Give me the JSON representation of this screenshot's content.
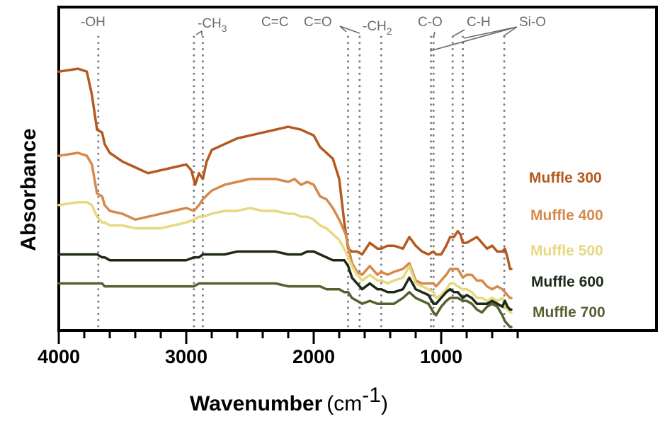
{
  "chart_data": {
    "type": "line",
    "title": "",
    "xlabel": "Wavenumber",
    "xlabel_unit": "(cm",
    "xlabel_unit_sup": "-1",
    "xlabel_unit_close": ")",
    "ylabel": "Absorbance",
    "xlim": [
      4000,
      450
    ],
    "x_reversed": true,
    "ylim": [
      0,
      100
    ],
    "y_units": "arbitrary (offset)",
    "grid": false,
    "legend_placement": "right, inline",
    "x_ticks": [
      {
        "value": 4000,
        "label": "4000"
      },
      {
        "value": 3000,
        "label": "3000"
      },
      {
        "value": 2000,
        "label": "2000"
      },
      {
        "value": 1000,
        "label": "1000"
      }
    ],
    "x_minor_tick_step": 200,
    "annotations": [
      {
        "label": "-OH",
        "positions": [
          3690
        ]
      },
      {
        "label": "-CH",
        "sub": "3",
        "positions": [
          2940,
          2870
        ]
      },
      {
        "label": "C=C",
        "positions": [
          1730
        ]
      },
      {
        "label": "C=O",
        "positions": [
          1640
        ]
      },
      {
        "label": "-CH",
        "sub": "2",
        "positions": [
          1470
        ]
      },
      {
        "label": "C-O",
        "positions": [
          1080,
          1060
        ]
      },
      {
        "label": "C-H",
        "positions": [
          910,
          830
        ]
      },
      {
        "label": "Si-O",
        "positions": [
          1060,
          910,
          830,
          505
        ]
      }
    ],
    "series": [
      {
        "name": "Muffle 300",
        "color": "#b4591f",
        "x": [
          4000,
          3850,
          3780,
          3740,
          3700,
          3660,
          3640,
          3600,
          3500,
          3400,
          3300,
          3200,
          3100,
          3000,
          2960,
          2930,
          2900,
          2870,
          2840,
          2800,
          2700,
          2600,
          2500,
          2400,
          2300,
          2200,
          2100,
          2050,
          2000,
          1950,
          1900,
          1850,
          1800,
          1760,
          1730,
          1700,
          1660,
          1620,
          1560,
          1500,
          1470,
          1420,
          1370,
          1300,
          1250,
          1200,
          1150,
          1100,
          1060,
          1040,
          1000,
          960,
          930,
          900,
          870,
          850,
          830,
          800,
          760,
          720,
          680,
          640,
          600,
          560,
          520,
          500,
          480,
          460,
          450
        ],
        "y": [
          88,
          89,
          88,
          80,
          68,
          67,
          63,
          60,
          57,
          55,
          53,
          54,
          55,
          56,
          54,
          49,
          53,
          51,
          57,
          61,
          63,
          65,
          66,
          67,
          68,
          69,
          68,
          67,
          66,
          62,
          60,
          58,
          51,
          36,
          27,
          26,
          26,
          25,
          29,
          27,
          27,
          28,
          28,
          27,
          31,
          28,
          26,
          25,
          26,
          25,
          25,
          28,
          31,
          31,
          33,
          32,
          29,
          29,
          30,
          31,
          29,
          27,
          28,
          26,
          26,
          27,
          24,
          20,
          20
        ]
      },
      {
        "name": "Muffle 400",
        "color": "#d58a4c",
        "x": [
          4000,
          3850,
          3780,
          3740,
          3700,
          3660,
          3640,
          3600,
          3500,
          3400,
          3300,
          3200,
          3100,
          3000,
          2940,
          2900,
          2870,
          2800,
          2700,
          2600,
          2500,
          2400,
          2300,
          2200,
          2150,
          2100,
          2050,
          2000,
          1950,
          1900,
          1850,
          1800,
          1750,
          1700,
          1660,
          1620,
          1560,
          1500,
          1470,
          1420,
          1370,
          1300,
          1250,
          1200,
          1150,
          1100,
          1060,
          1040,
          1000,
          960,
          930,
          900,
          870,
          830,
          800,
          760,
          720,
          680,
          640,
          600,
          560,
          520,
          500,
          480,
          460,
          450
        ],
        "y": [
          59,
          60,
          59,
          56,
          46,
          45,
          42,
          40,
          39,
          37,
          38,
          39,
          40,
          41,
          40,
          42,
          44,
          47,
          49,
          50,
          51,
          51,
          51,
          50,
          51,
          49,
          50,
          49,
          45,
          44,
          41,
          37,
          32,
          22,
          19,
          18,
          21,
          18,
          19,
          18,
          19,
          20,
          22,
          16,
          15,
          15,
          15,
          14,
          16,
          18,
          20,
          20,
          20,
          17,
          18,
          18,
          16,
          16,
          14,
          13,
          14,
          13,
          12,
          11,
          10,
          10
        ]
      },
      {
        "name": "Muffle 500",
        "color": "#e8d880",
        "x": [
          4000,
          3850,
          3780,
          3740,
          3700,
          3660,
          3640,
          3600,
          3500,
          3400,
          3300,
          3200,
          3100,
          3000,
          2940,
          2900,
          2870,
          2800,
          2700,
          2600,
          2500,
          2400,
          2300,
          2200,
          2150,
          2100,
          2050,
          2000,
          1950,
          1900,
          1850,
          1800,
          1750,
          1700,
          1660,
          1620,
          1560,
          1500,
          1470,
          1420,
          1370,
          1300,
          1250,
          1200,
          1150,
          1100,
          1060,
          1040,
          1000,
          960,
          930,
          900,
          870,
          830,
          800,
          760,
          720,
          680,
          640,
          600,
          560,
          520,
          500,
          480,
          460,
          450
        ],
        "y": [
          42,
          43,
          43,
          42,
          38,
          36,
          36,
          35,
          35,
          34,
          34,
          34,
          35,
          36,
          37,
          38,
          38,
          39,
          40,
          40,
          41,
          40,
          40,
          39,
          39,
          38,
          38,
          37,
          35,
          34,
          32,
          30,
          26,
          21,
          18,
          16,
          18,
          16,
          16,
          15,
          16,
          17,
          21,
          15,
          14,
          13,
          12,
          10,
          11,
          13,
          15,
          15,
          14,
          13,
          13,
          12,
          10,
          10,
          9,
          10,
          9,
          10,
          7,
          6,
          5,
          5
        ]
      },
      {
        "name": "Muffle 600",
        "color": "#1d2a15",
        "x": [
          4000,
          3850,
          3780,
          3740,
          3700,
          3660,
          3640,
          3600,
          3500,
          3400,
          3300,
          3200,
          3100,
          3000,
          2940,
          2900,
          2870,
          2800,
          2700,
          2600,
          2500,
          2400,
          2300,
          2200,
          2150,
          2100,
          2050,
          2000,
          1950,
          1900,
          1850,
          1800,
          1760,
          1730,
          1700,
          1660,
          1620,
          1560,
          1500,
          1470,
          1420,
          1370,
          1300,
          1250,
          1200,
          1150,
          1100,
          1060,
          1040,
          1000,
          960,
          930,
          900,
          870,
          830,
          800,
          760,
          720,
          680,
          640,
          600,
          560,
          520,
          500,
          480,
          460,
          450
        ],
        "y": [
          25,
          25,
          25,
          25,
          25,
          24,
          24,
          23,
          23,
          23,
          23,
          23,
          23,
          23,
          24,
          24,
          25,
          25,
          25,
          26,
          26,
          26,
          26,
          25,
          25,
          25,
          26,
          26,
          25,
          24,
          23,
          23,
          23,
          21,
          17,
          15,
          13,
          15,
          13,
          13,
          12,
          12,
          13,
          17,
          13,
          12,
          11,
          8,
          8,
          10,
          12,
          13,
          12,
          12,
          10,
          11,
          10,
          8,
          8,
          8,
          9,
          8,
          7,
          9,
          7,
          6,
          6
        ]
      },
      {
        "name": "Muffle 700",
        "color": "#55622f",
        "x": [
          4000,
          3850,
          3780,
          3740,
          3700,
          3660,
          3640,
          3600,
          3500,
          3400,
          3300,
          3200,
          3100,
          3000,
          2940,
          2900,
          2870,
          2800,
          2700,
          2600,
          2500,
          2400,
          2300,
          2200,
          2150,
          2100,
          2050,
          2000,
          1950,
          1900,
          1850,
          1800,
          1760,
          1730,
          1700,
          1660,
          1620,
          1560,
          1500,
          1470,
          1420,
          1370,
          1300,
          1250,
          1200,
          1150,
          1100,
          1060,
          1040,
          1000,
          960,
          930,
          900,
          870,
          830,
          800,
          760,
          720,
          680,
          640,
          600,
          560,
          520,
          500,
          480,
          460,
          450
        ],
        "y": [
          15,
          15,
          15,
          15,
          15,
          15,
          14,
          14,
          14,
          14,
          14,
          14,
          14,
          14,
          14,
          15,
          15,
          15,
          15,
          15,
          15,
          15,
          15,
          14,
          14,
          14,
          14,
          14,
          14,
          13,
          13,
          13,
          12,
          12,
          10,
          9,
          8,
          9,
          8,
          8,
          8,
          8,
          10,
          12,
          10,
          9,
          8,
          5,
          4,
          7,
          9,
          10,
          10,
          10,
          9,
          9,
          8,
          6,
          5,
          7,
          8,
          7,
          4,
          2,
          1,
          0,
          0
        ]
      }
    ]
  }
}
